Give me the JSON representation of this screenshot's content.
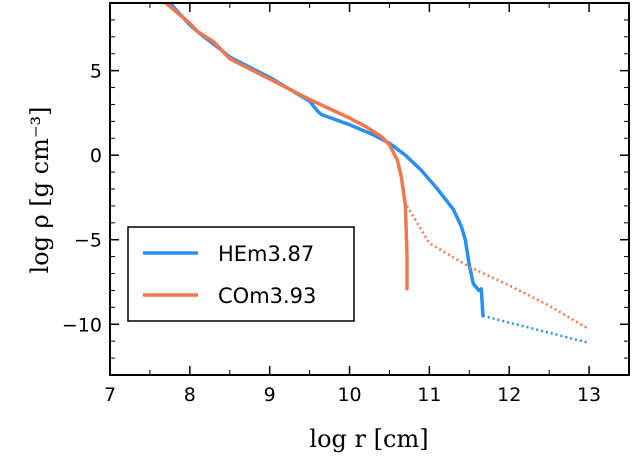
{
  "chart_data": {
    "type": "line",
    "xlabel": "log r [cm]",
    "ylabel": "log ρ [g cm⁻³]",
    "xlim": [
      7,
      13.5
    ],
    "ylim": [
      -13,
      9
    ],
    "xticks": [
      "7",
      "8",
      "9",
      "10",
      "11",
      "12",
      "13"
    ],
    "yticks": [
      "−10",
      "−5",
      "0",
      "5"
    ],
    "xtick_values": [
      7,
      8,
      9,
      10,
      11,
      12,
      13
    ],
    "ytick_values": [
      -10,
      -5,
      0,
      5
    ],
    "legend_position": "lower-left",
    "series": [
      {
        "name": "HEm3.87",
        "color": "#2b8ff0",
        "solid": [
          [
            7.75,
            9.0
          ],
          [
            8.0,
            7.7
          ],
          [
            8.15,
            7.1
          ],
          [
            8.4,
            6.2
          ],
          [
            8.5,
            5.8
          ],
          [
            9.0,
            4.6
          ],
          [
            9.5,
            3.2
          ],
          [
            9.6,
            2.6
          ],
          [
            9.65,
            2.4
          ],
          [
            10.0,
            1.8
          ],
          [
            10.3,
            1.2
          ],
          [
            10.5,
            0.7
          ],
          [
            10.7,
            0.0
          ],
          [
            10.9,
            -0.9
          ],
          [
            11.1,
            -2.0
          ],
          [
            11.3,
            -3.2
          ],
          [
            11.4,
            -4.2
          ],
          [
            11.45,
            -5.0
          ],
          [
            11.5,
            -6.5
          ],
          [
            11.55,
            -7.6
          ],
          [
            11.62,
            -8.0
          ],
          [
            11.65,
            -7.9
          ],
          [
            11.67,
            -9.5
          ]
        ],
        "dotted": [
          [
            11.67,
            -9.5
          ],
          [
            12.0,
            -9.9
          ],
          [
            12.5,
            -10.5
          ],
          [
            13.0,
            -11.1
          ]
        ]
      },
      {
        "name": "COm3.93",
        "color": "#f07850",
        "solid": [
          [
            7.7,
            9.0
          ],
          [
            8.0,
            7.8
          ],
          [
            8.1,
            7.3
          ],
          [
            8.3,
            6.7
          ],
          [
            8.5,
            5.7
          ],
          [
            9.0,
            4.5
          ],
          [
            9.5,
            3.3
          ],
          [
            10.0,
            2.2
          ],
          [
            10.2,
            1.7
          ],
          [
            10.4,
            1.1
          ],
          [
            10.5,
            0.6
          ],
          [
            10.6,
            -0.3
          ],
          [
            10.65,
            -1.3
          ],
          [
            10.7,
            -3.0
          ],
          [
            10.72,
            -6.0
          ],
          [
            10.72,
            -7.9
          ]
        ],
        "dotted": [
          [
            10.72,
            -3.0
          ],
          [
            11.0,
            -5.2
          ],
          [
            11.5,
            -6.6
          ],
          [
            12.0,
            -7.7
          ],
          [
            12.5,
            -8.9
          ],
          [
            13.0,
            -10.3
          ]
        ]
      }
    ]
  }
}
